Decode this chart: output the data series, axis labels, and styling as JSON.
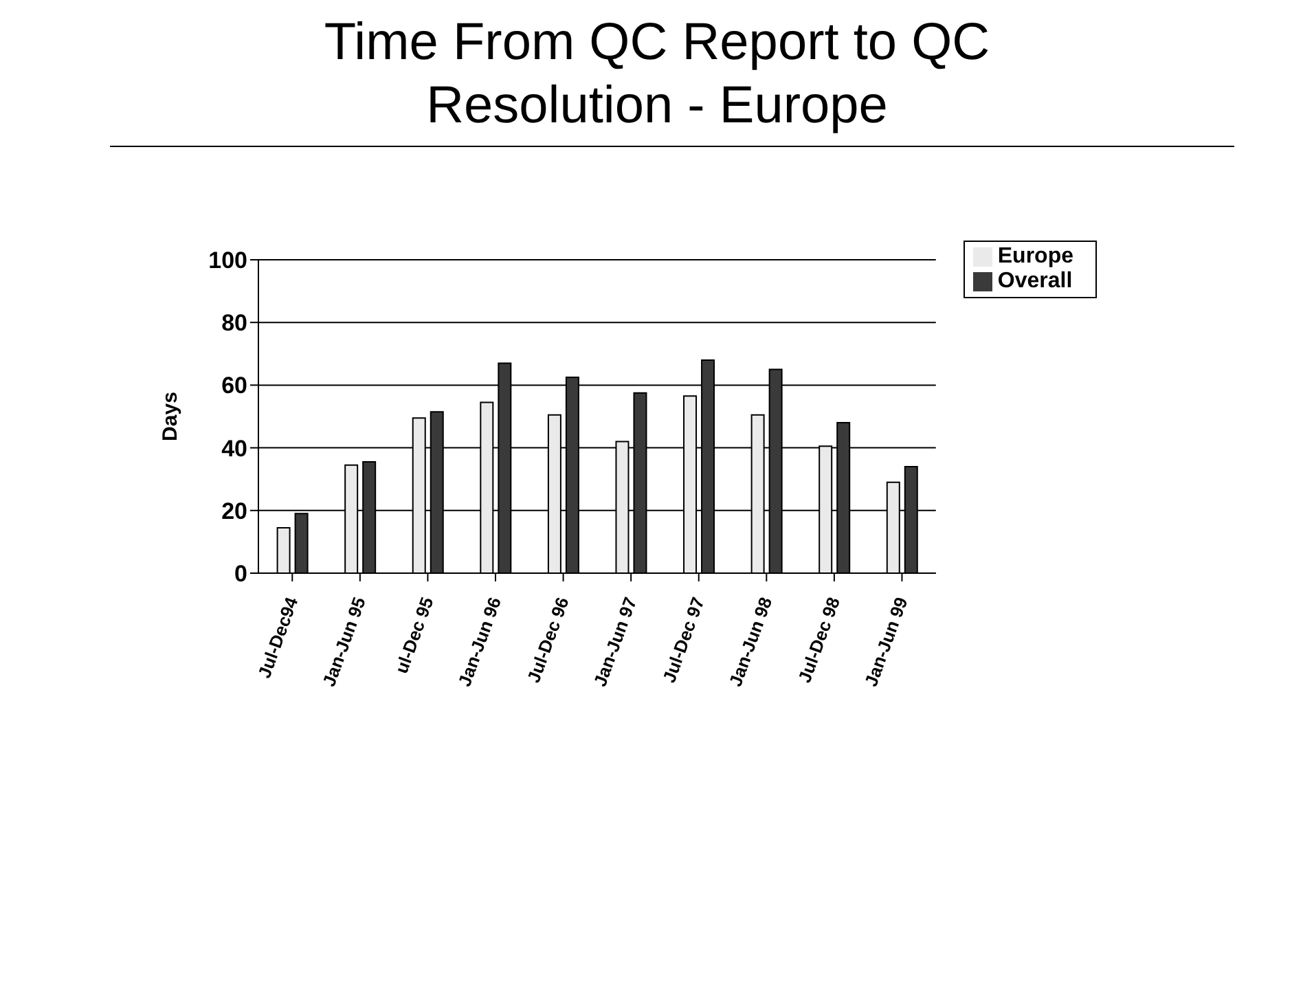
{
  "chart_data": {
    "type": "bar",
    "title": "Time From QC Report to QC Resolution - Europe",
    "ylabel": "Days",
    "categories": [
      "Jul-Dec94",
      "Jan-Jun 95",
      "ul-Dec 95",
      "Jan-Jun 96",
      "Jul-Dec 96",
      "Jan-Jun 97",
      "Jul-Dec 97",
      "Jan-Jun 98",
      "Jul-Dec 98",
      "Jan-Jun 99"
    ],
    "series": [
      {
        "name": "Europe",
        "color": "#eaeaea",
        "values": [
          14.5,
          34.5,
          49.5,
          54.5,
          50.5,
          42,
          56.5,
          50.5,
          40.5,
          29
        ]
      },
      {
        "name": "Overall",
        "color": "#3a3a3a",
        "values": [
          19,
          35.5,
          51.5,
          67,
          62.5,
          57.5,
          68,
          65,
          48,
          34
        ]
      }
    ],
    "ylim": [
      0,
      100
    ],
    "yticks": [
      0,
      20,
      40,
      60,
      80,
      100
    ],
    "grid": "y",
    "legend": "top right"
  }
}
